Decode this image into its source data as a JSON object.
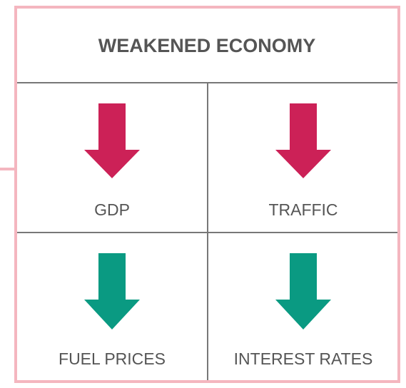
{
  "title": "WEAKENED ECONOMY",
  "cells": [
    {
      "label": "GDP"
    },
    {
      "label": "TRAFFIC"
    },
    {
      "label": "FUEL PRICES"
    },
    {
      "label": "INTEREST RATES"
    }
  ]
}
